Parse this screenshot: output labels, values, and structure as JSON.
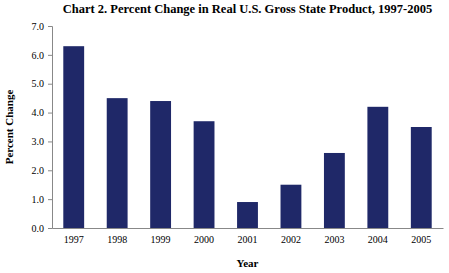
{
  "chart_data": {
    "type": "bar",
    "title": "Chart 2. Percent Change in Real U.S. Gross State Product, 1997-2005",
    "x_label": "Year",
    "y_label": "Percent Change",
    "categories": [
      "1997",
      "1998",
      "1999",
      "2000",
      "2001",
      "2002",
      "2003",
      "2004",
      "2005"
    ],
    "values": [
      6.3,
      4.5,
      4.4,
      3.7,
      0.9,
      1.5,
      2.6,
      4.2,
      3.5
    ],
    "color": "#1f2868",
    "ylim": [
      0,
      7
    ],
    "yticks": [
      {
        "value": 0,
        "label": "0.0"
      },
      {
        "value": 1,
        "label": "1.0"
      },
      {
        "value": 2,
        "label": "2.0"
      },
      {
        "value": 3,
        "label": "3.0"
      },
      {
        "value": 4,
        "label": "4.0"
      },
      {
        "value": 5,
        "label": "5.0"
      },
      {
        "value": 6,
        "label": "6.0"
      },
      {
        "value": 7,
        "label": "7.0"
      }
    ],
    "grid": false
  }
}
